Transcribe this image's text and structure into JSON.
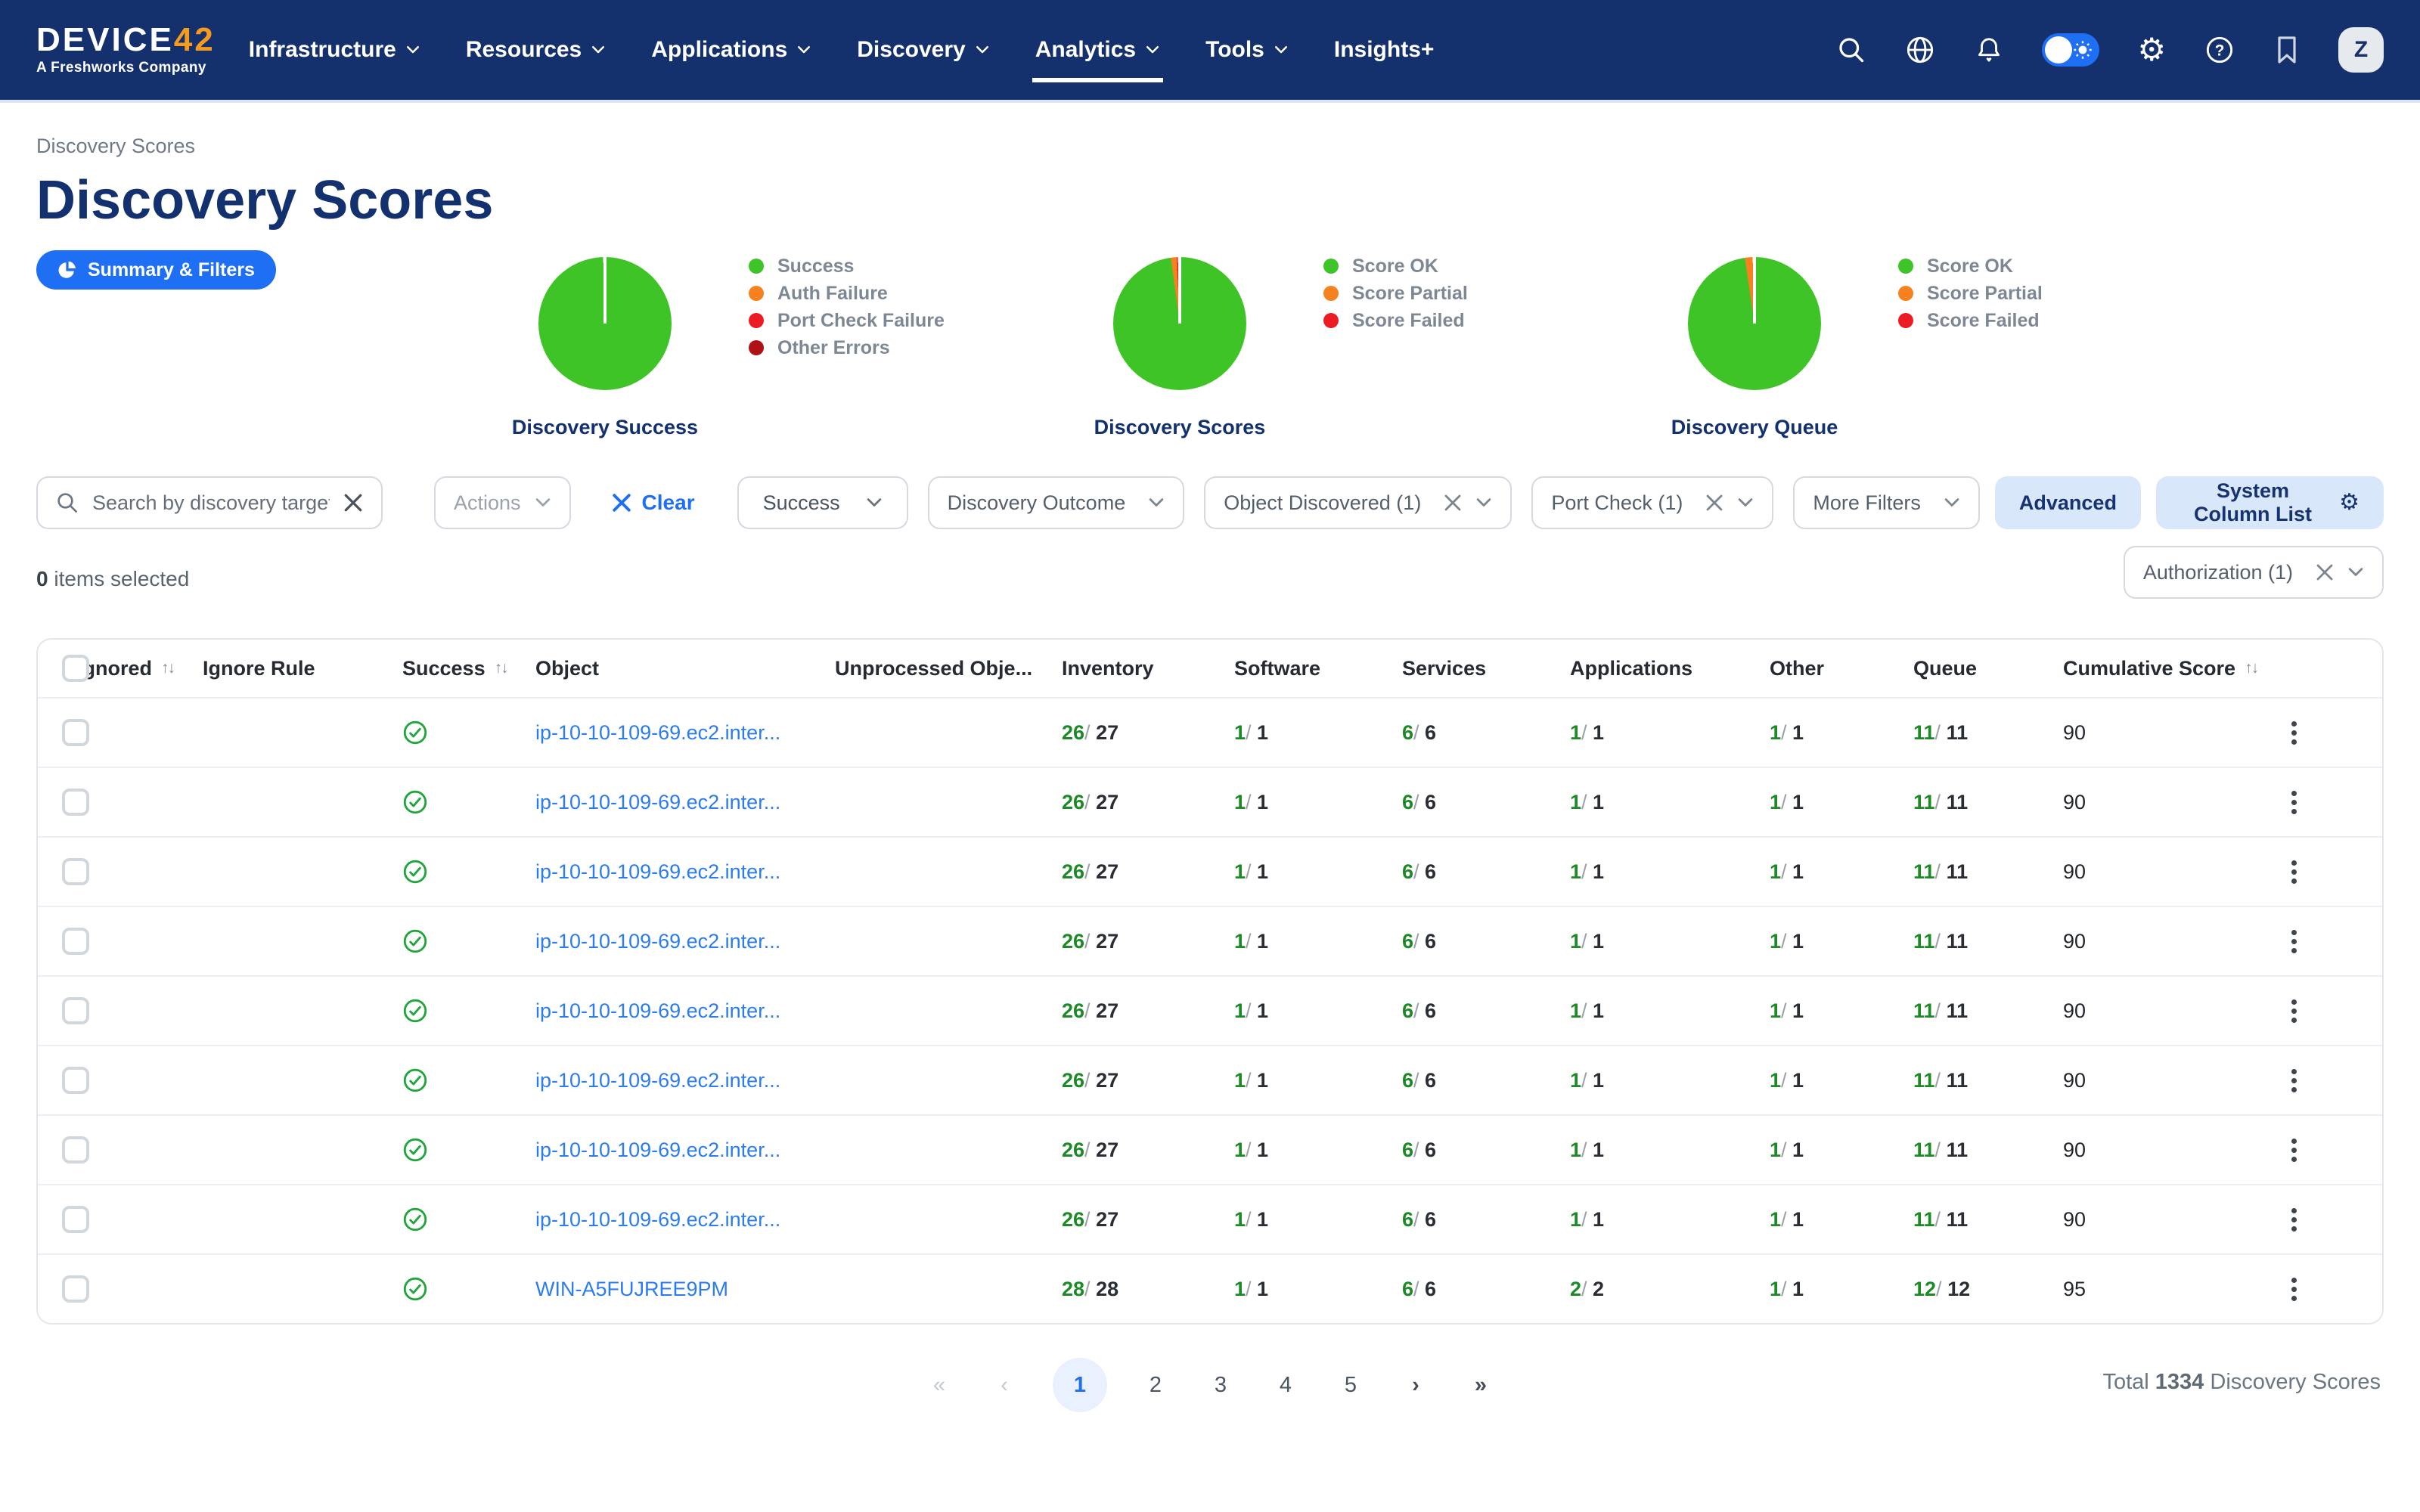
{
  "colors": {
    "nav_bg": "#14306d",
    "accent_blue": "#1f6ff5",
    "navy_text": "#14316f",
    "green": "#3ec427",
    "orange": "#f5821f",
    "red": "#ec1c24",
    "dark_red": "#b01116",
    "link_blue": "#2b7cf0",
    "success_icon_green": "#21a63c",
    "numerator_green": "#1d8a27",
    "light_blue_btn": "#d9e7fb",
    "pager_active_bg": "#e8f1fd"
  },
  "nav": {
    "logo": {
      "brand_main": "DEVICE",
      "brand_number": "42",
      "tagline": "A Freshworks Company"
    },
    "items": [
      {
        "label": "Infrastructure",
        "caret": true
      },
      {
        "label": "Resources",
        "caret": true
      },
      {
        "label": "Applications",
        "caret": true
      },
      {
        "label": "Discovery",
        "caret": true
      },
      {
        "label": "Analytics",
        "caret": true
      },
      {
        "label": "Tools",
        "caret": true
      },
      {
        "label": "Insights+",
        "caret": false
      }
    ],
    "active_item": "Analytics",
    "right_icons": [
      "search-icon",
      "globe-icon",
      "notifications-icon",
      "theme-toggle",
      "settings-icon",
      "help-icon",
      "bookmark-icon"
    ],
    "avatar_initial": "Z"
  },
  "header": {
    "breadcrumb": "Discovery Scores",
    "title": "Discovery Scores",
    "summary_button": "Summary & Filters"
  },
  "chart_data": [
    {
      "type": "pie",
      "title": "Discovery Success",
      "legend": [
        "Success",
        "Auth Failure",
        "Port Check Failure",
        "Other Errors"
      ],
      "colors": [
        "#3ec427",
        "#f5821f",
        "#ec1c24",
        "#b01116"
      ],
      "values_pct": [
        100,
        0,
        0,
        0
      ]
    },
    {
      "type": "pie",
      "title": "Discovery Scores",
      "legend": [
        "Score OK",
        "Score Partial",
        "Score Failed"
      ],
      "colors": [
        "#3ec427",
        "#f5821f",
        "#ec1c24"
      ],
      "values_pct": [
        98.3,
        1.4,
        0.3
      ]
    },
    {
      "type": "pie",
      "title": "Discovery Queue",
      "legend": [
        "Score OK",
        "Score Partial",
        "Score Failed"
      ],
      "colors": [
        "#3ec427",
        "#f5821f",
        "#ec1c24"
      ],
      "values_pct": [
        98.1,
        1.9,
        0
      ]
    }
  ],
  "filters": {
    "search": {
      "placeholder": "Search by discovery target",
      "value": ""
    },
    "actions": {
      "label": "Actions"
    },
    "clear_label": "Clear",
    "success": {
      "label": "Success"
    },
    "discovery_outcome": {
      "label": "Discovery Outcome"
    },
    "object_discovered": {
      "label": "Object Discovered (1)"
    },
    "port_check": {
      "label": "Port Check (1)"
    },
    "more_filters": {
      "label": "More Filters"
    },
    "advanced_label": "Advanced",
    "system_column_list_label": "System Column List",
    "authorization": {
      "label": "Authorization (1)"
    }
  },
  "selection": {
    "count": "0",
    "label": "items selected"
  },
  "icons": {
    "sort": "↑↓",
    "gear": "⚙"
  },
  "table": {
    "columns": [
      {
        "label": "",
        "key": "checkbox"
      },
      {
        "label": "Ignored",
        "sortable": true
      },
      {
        "label": "Ignore Rule",
        "sortable": false
      },
      {
        "label": "Success",
        "sortable": true
      },
      {
        "label": "Object",
        "sortable": false
      },
      {
        "label": "Unprocessed Obje...",
        "sortable": false
      },
      {
        "label": "Inventory",
        "sortable": false
      },
      {
        "label": "Software",
        "sortable": false
      },
      {
        "label": "Services",
        "sortable": false
      },
      {
        "label": "Applications",
        "sortable": false
      },
      {
        "label": "Other",
        "sortable": false
      },
      {
        "label": "Queue",
        "sortable": false
      },
      {
        "label": "Cumulative Score",
        "sortable": true
      }
    ],
    "rows": [
      {
        "success": true,
        "object": "ip-10-10-109-69.ec2.inter...",
        "inventory": {
          "num": "26",
          "den": "27"
        },
        "software": {
          "num": "1",
          "den": "1"
        },
        "services": {
          "num": "6",
          "den": "6"
        },
        "applications": {
          "num": "1",
          "den": "1"
        },
        "other": {
          "num": "1",
          "den": "1"
        },
        "queue": {
          "num": "11",
          "den": "11"
        },
        "score": "90"
      },
      {
        "success": true,
        "object": "ip-10-10-109-69.ec2.inter...",
        "inventory": {
          "num": "26",
          "den": "27"
        },
        "software": {
          "num": "1",
          "den": "1"
        },
        "services": {
          "num": "6",
          "den": "6"
        },
        "applications": {
          "num": "1",
          "den": "1"
        },
        "other": {
          "num": "1",
          "den": "1"
        },
        "queue": {
          "num": "11",
          "den": "11"
        },
        "score": "90"
      },
      {
        "success": true,
        "object": "ip-10-10-109-69.ec2.inter...",
        "inventory": {
          "num": "26",
          "den": "27"
        },
        "software": {
          "num": "1",
          "den": "1"
        },
        "services": {
          "num": "6",
          "den": "6"
        },
        "applications": {
          "num": "1",
          "den": "1"
        },
        "other": {
          "num": "1",
          "den": "1"
        },
        "queue": {
          "num": "11",
          "den": "11"
        },
        "score": "90"
      },
      {
        "success": true,
        "object": "ip-10-10-109-69.ec2.inter...",
        "inventory": {
          "num": "26",
          "den": "27"
        },
        "software": {
          "num": "1",
          "den": "1"
        },
        "services": {
          "num": "6",
          "den": "6"
        },
        "applications": {
          "num": "1",
          "den": "1"
        },
        "other": {
          "num": "1",
          "den": "1"
        },
        "queue": {
          "num": "11",
          "den": "11"
        },
        "score": "90"
      },
      {
        "success": true,
        "object": "ip-10-10-109-69.ec2.inter...",
        "inventory": {
          "num": "26",
          "den": "27"
        },
        "software": {
          "num": "1",
          "den": "1"
        },
        "services": {
          "num": "6",
          "den": "6"
        },
        "applications": {
          "num": "1",
          "den": "1"
        },
        "other": {
          "num": "1",
          "den": "1"
        },
        "queue": {
          "num": "11",
          "den": "11"
        },
        "score": "90"
      },
      {
        "success": true,
        "object": "ip-10-10-109-69.ec2.inter...",
        "inventory": {
          "num": "26",
          "den": "27"
        },
        "software": {
          "num": "1",
          "den": "1"
        },
        "services": {
          "num": "6",
          "den": "6"
        },
        "applications": {
          "num": "1",
          "den": "1"
        },
        "other": {
          "num": "1",
          "den": "1"
        },
        "queue": {
          "num": "11",
          "den": "11"
        },
        "score": "90"
      },
      {
        "success": true,
        "object": "ip-10-10-109-69.ec2.inter...",
        "inventory": {
          "num": "26",
          "den": "27"
        },
        "software": {
          "num": "1",
          "den": "1"
        },
        "services": {
          "num": "6",
          "den": "6"
        },
        "applications": {
          "num": "1",
          "den": "1"
        },
        "other": {
          "num": "1",
          "den": "1"
        },
        "queue": {
          "num": "11",
          "den": "11"
        },
        "score": "90"
      },
      {
        "success": true,
        "object": "ip-10-10-109-69.ec2.inter...",
        "inventory": {
          "num": "26",
          "den": "27"
        },
        "software": {
          "num": "1",
          "den": "1"
        },
        "services": {
          "num": "6",
          "den": "6"
        },
        "applications": {
          "num": "1",
          "den": "1"
        },
        "other": {
          "num": "1",
          "den": "1"
        },
        "queue": {
          "num": "11",
          "den": "11"
        },
        "score": "90"
      },
      {
        "success": true,
        "object": "WIN-A5FUJREE9PM",
        "inventory": {
          "num": "28",
          "den": "28"
        },
        "software": {
          "num": "1",
          "den": "1"
        },
        "services": {
          "num": "6",
          "den": "6"
        },
        "applications": {
          "num": "2",
          "den": "2"
        },
        "other": {
          "num": "1",
          "den": "1"
        },
        "queue": {
          "num": "12",
          "den": "12"
        },
        "score": "95"
      }
    ]
  },
  "pagination": {
    "first": "«",
    "prev": "‹",
    "pages": [
      "1",
      "2",
      "3",
      "4",
      "5"
    ],
    "active": "1",
    "next": "›",
    "last": "»"
  },
  "footer_total": {
    "prefix": "Total",
    "count": "1334",
    "suffix": "Discovery Scores"
  }
}
